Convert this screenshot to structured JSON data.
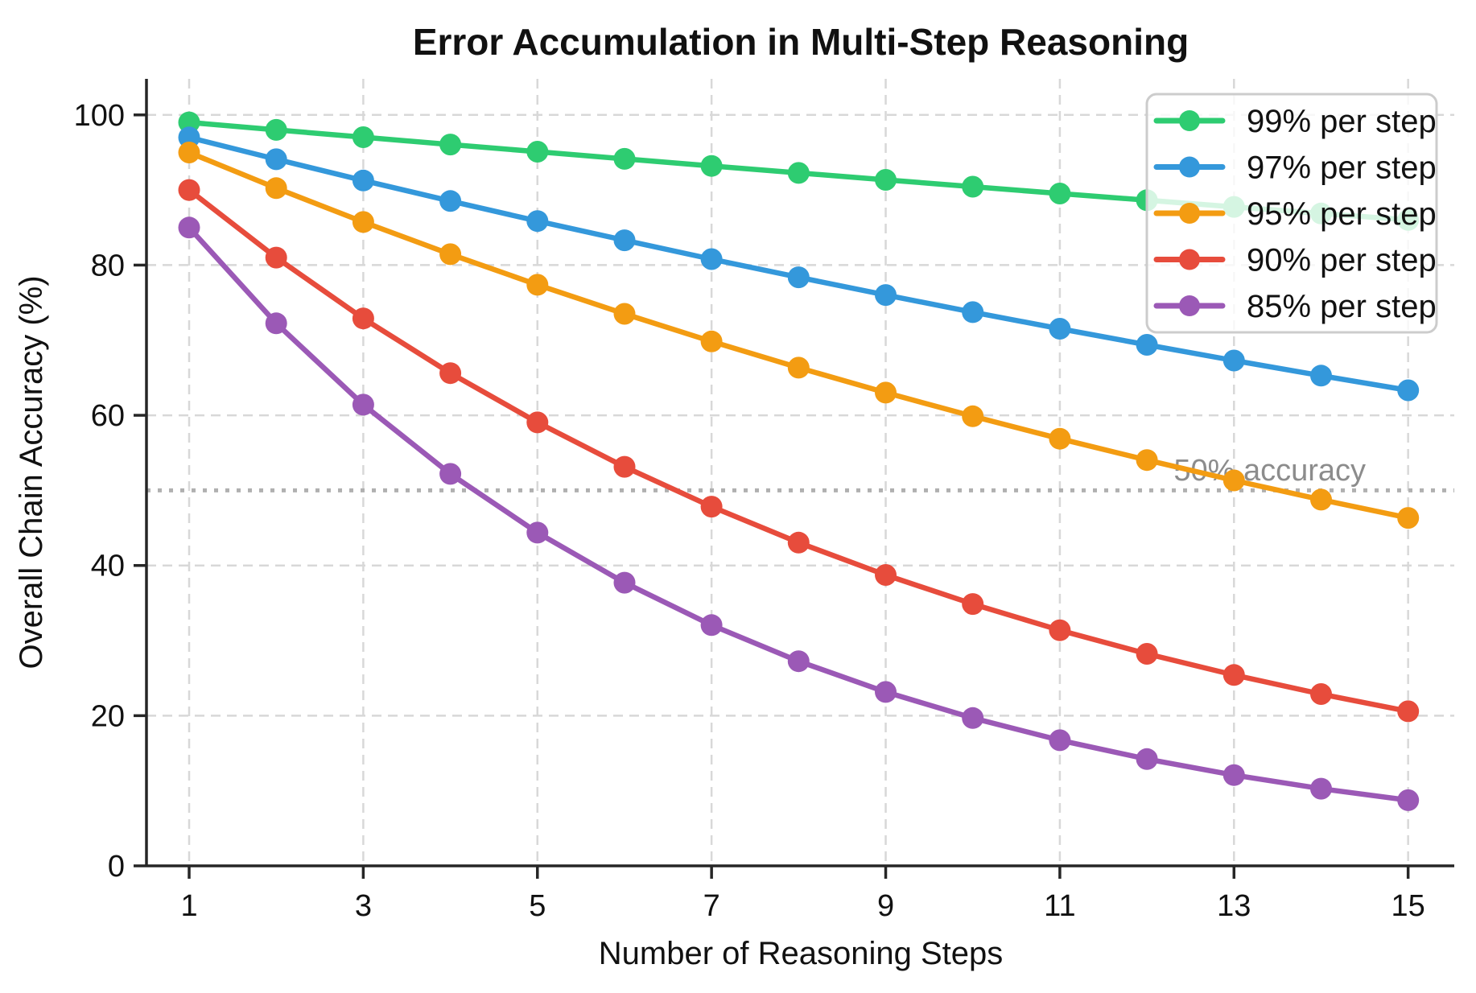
{
  "chart_data": {
    "type": "line",
    "title": "Error Accumulation in Multi-Step Reasoning",
    "xlabel": "Number of Reasoning Steps",
    "ylabel": "Overall Chain Accuracy (%)",
    "x": [
      1,
      2,
      3,
      4,
      5,
      6,
      7,
      8,
      9,
      10,
      11,
      12,
      13,
      14,
      15
    ],
    "xticks": [
      1,
      3,
      5,
      7,
      9,
      11,
      13,
      15
    ],
    "yticks": [
      0,
      20,
      40,
      60,
      80,
      100
    ],
    "xlim": [
      0.51,
      15.53
    ],
    "ylim": [
      0,
      104.8
    ],
    "grid": true,
    "grid_style": "dashed",
    "legend_position": "upper right",
    "series": [
      {
        "name": "99% per step",
        "color": "#2ecc71",
        "per_step_accuracy": 99,
        "values": [
          99.0,
          98.01,
          97.03,
          96.06,
          95.1,
          94.15,
          93.21,
          92.27,
          91.35,
          90.44,
          89.53,
          88.64,
          87.75,
          86.87,
          86.01
        ]
      },
      {
        "name": "97% per step",
        "color": "#3498db",
        "per_step_accuracy": 97,
        "values": [
          97.0,
          94.09,
          91.27,
          88.53,
          85.87,
          83.3,
          80.8,
          78.37,
          76.02,
          73.74,
          71.53,
          69.38,
          67.3,
          65.28,
          63.33
        ]
      },
      {
        "name": "95% per step",
        "color": "#f39c12",
        "per_step_accuracy": 95,
        "values": [
          95.0,
          90.25,
          85.74,
          81.45,
          77.38,
          73.51,
          69.83,
          66.34,
          63.02,
          59.87,
          56.88,
          54.04,
          51.33,
          48.77,
          46.33
        ]
      },
      {
        "name": "90% per step",
        "color": "#e74c3c",
        "per_step_accuracy": 90,
        "values": [
          90.0,
          81.0,
          72.9,
          65.61,
          59.05,
          53.14,
          47.83,
          43.05,
          38.74,
          34.87,
          31.38,
          28.24,
          25.42,
          22.88,
          20.59
        ]
      },
      {
        "name": "85% per step",
        "color": "#9b59b6",
        "per_step_accuracy": 85,
        "values": [
          85.0,
          72.25,
          61.41,
          52.2,
          44.37,
          37.71,
          32.06,
          27.25,
          23.16,
          19.69,
          16.73,
          14.22,
          12.09,
          10.28,
          8.74
        ]
      }
    ],
    "reference_line": {
      "y": 50,
      "label": "50% accuracy",
      "color": "#b0b0b0",
      "text_color": "#8c8c8c",
      "style": "dotted"
    }
  },
  "style": {
    "grid_color": "#d8d8d8",
    "spine_color": "#262626",
    "legend_border_color": "#cccccc",
    "legend_fill": "rgba(255,255,255,0.8)"
  }
}
